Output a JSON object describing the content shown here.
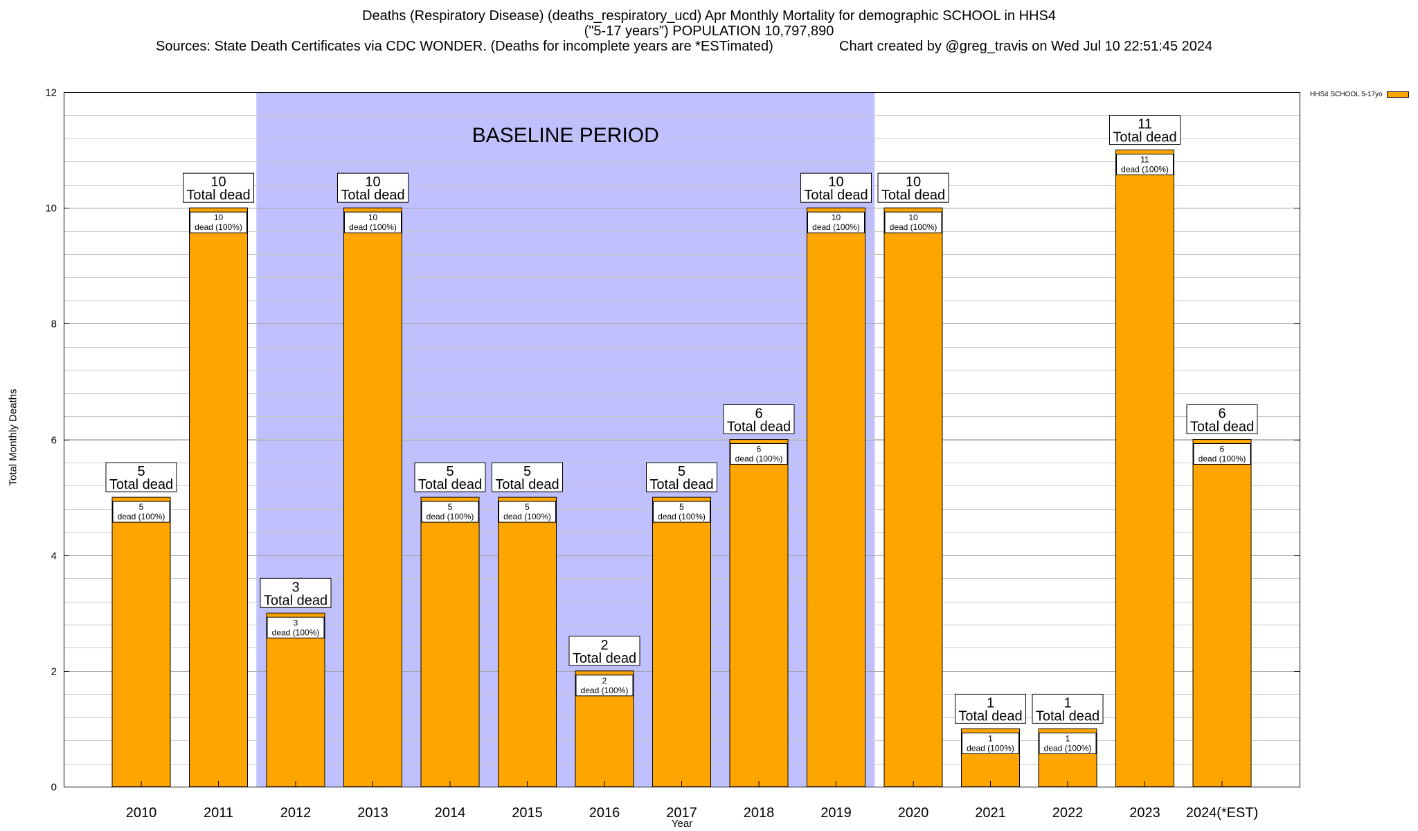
{
  "header": {
    "line1": "Deaths (Respiratory Disease) (deaths_respiratory_ucd) Apr Monthly Mortality for demographic SCHOOL in HHS4",
    "line2": "(\"5-17 years\") POPULATION 10,797,890",
    "line3": "Sources: State Death Certificates via CDC WONDER. (Deaths for incomplete years are *ESTimated)",
    "line4": "Chart created by @greg_travis on Wed Jul 10 22:51:45 2024"
  },
  "chart_data": {
    "type": "bar",
    "title": "Deaths (Respiratory Disease) (deaths_respiratory_ucd) Apr Monthly Mortality for demographic SCHOOL in HHS4",
    "xlabel": "Year",
    "ylabel": "Total Monthly Deaths",
    "ylim": [
      0,
      12
    ],
    "yticks": [
      0,
      2,
      4,
      6,
      8,
      10,
      12
    ],
    "ytick_labels": [
      "0",
      "2",
      "4",
      "6",
      "8",
      "10",
      "12"
    ],
    "grid": true,
    "legend_position": "top-right",
    "categories": [
      "2010",
      "2011",
      "2012",
      "2013",
      "2014",
      "2015",
      "2016",
      "2017",
      "2018",
      "2019",
      "2020",
      "2021",
      "2022",
      "2023",
      "2024(*EST)"
    ],
    "series": [
      {
        "name": "HHS4 SCHOOL 5-17yo",
        "color": "#ffa500",
        "values": [
          5,
          10,
          3,
          10,
          5,
          5,
          2,
          5,
          6,
          10,
          10,
          1,
          1,
          11,
          6
        ]
      }
    ],
    "total_label_suffix": "Total dead",
    "inner_label_suffix": "dead (100%)",
    "baseline": {
      "label": "BASELINE PERIOD",
      "from": "2012",
      "to": "2019",
      "color": "#c0c0ff"
    }
  }
}
